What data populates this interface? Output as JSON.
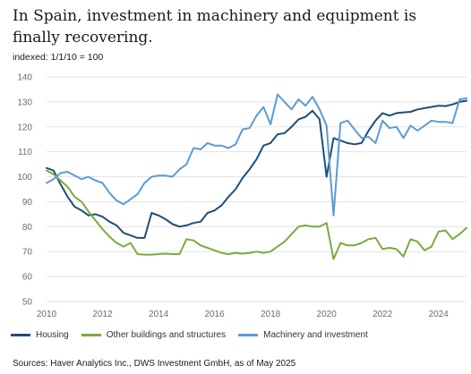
{
  "chart_data": {
    "type": "line",
    "title": "In Spain, investment in machinery and equipment is finally recovering.",
    "subtitle": "indexed: 1/1/10 = 100",
    "source": "Sources: Haver Analytics Inc., DWS Investment GmbH, as of May 2025",
    "xlim": [
      2010,
      2025
    ],
    "ylim": [
      50,
      140
    ],
    "xticks": [
      2010,
      2012,
      2014,
      2016,
      2018,
      2020,
      2022,
      2024
    ],
    "yticks": [
      50,
      60,
      70,
      80,
      90,
      100,
      110,
      120,
      130,
      140
    ],
    "grid": true,
    "legend_position": "bottom",
    "series": [
      {
        "name": "Housing",
        "color": "#1f4e79",
        "points": [
          [
            2010.0,
            103.5
          ],
          [
            2010.25,
            102.5
          ],
          [
            2010.5,
            97
          ],
          [
            2010.75,
            92
          ],
          [
            2011.0,
            88
          ],
          [
            2011.25,
            86.5
          ],
          [
            2011.5,
            84.5
          ],
          [
            2011.75,
            85
          ],
          [
            2012.0,
            84
          ],
          [
            2012.25,
            82
          ],
          [
            2012.5,
            80.5
          ],
          [
            2012.75,
            77.5
          ],
          [
            2013.0,
            76.5
          ],
          [
            2013.25,
            75.5
          ],
          [
            2013.5,
            75.5
          ],
          [
            2013.75,
            85.5
          ],
          [
            2014.0,
            84.5
          ],
          [
            2014.25,
            83
          ],
          [
            2014.5,
            81
          ],
          [
            2014.75,
            80
          ],
          [
            2015.0,
            80.5
          ],
          [
            2015.25,
            81.5
          ],
          [
            2015.5,
            82
          ],
          [
            2015.75,
            85.5
          ],
          [
            2016.0,
            86.5
          ],
          [
            2016.25,
            88.5
          ],
          [
            2016.5,
            92
          ],
          [
            2016.75,
            95
          ],
          [
            2017.0,
            99.5
          ],
          [
            2017.25,
            103
          ],
          [
            2017.5,
            107
          ],
          [
            2017.75,
            112.5
          ],
          [
            2018.0,
            113.5
          ],
          [
            2018.25,
            117
          ],
          [
            2018.5,
            117.5
          ],
          [
            2018.75,
            120
          ],
          [
            2019.0,
            123
          ],
          [
            2019.25,
            124
          ],
          [
            2019.5,
            126.5
          ],
          [
            2019.75,
            123
          ],
          [
            2020.0,
            100
          ],
          [
            2020.25,
            115.5
          ],
          [
            2020.5,
            114.5
          ],
          [
            2020.75,
            113.5
          ],
          [
            2021.0,
            113
          ],
          [
            2021.25,
            113.5
          ],
          [
            2021.5,
            118.5
          ],
          [
            2021.75,
            122.5
          ],
          [
            2022.0,
            125.5
          ],
          [
            2022.25,
            124.5
          ],
          [
            2022.5,
            125.5
          ],
          [
            2022.75,
            125.8
          ],
          [
            2023.0,
            126
          ],
          [
            2023.25,
            127
          ],
          [
            2023.5,
            127.5
          ],
          [
            2023.75,
            128
          ],
          [
            2024.0,
            128.5
          ],
          [
            2024.25,
            128.3
          ],
          [
            2024.5,
            129
          ],
          [
            2024.75,
            130
          ],
          [
            2025.0,
            130.5
          ]
        ]
      },
      {
        "name": "Other buildings and structures",
        "color": "#7aab3b",
        "points": [
          [
            2010.0,
            102.5
          ],
          [
            2010.25,
            101
          ],
          [
            2010.5,
            98.5
          ],
          [
            2010.75,
            96
          ],
          [
            2011.0,
            92
          ],
          [
            2011.25,
            90
          ],
          [
            2011.5,
            86
          ],
          [
            2011.75,
            82.5
          ],
          [
            2012.0,
            79
          ],
          [
            2012.25,
            76
          ],
          [
            2012.5,
            73.5
          ],
          [
            2012.75,
            72
          ],
          [
            2013.0,
            73.5
          ],
          [
            2013.25,
            69
          ],
          [
            2013.5,
            68.8
          ],
          [
            2013.75,
            68.8
          ],
          [
            2014.0,
            69
          ],
          [
            2014.25,
            69.2
          ],
          [
            2014.5,
            69
          ],
          [
            2014.75,
            69
          ],
          [
            2015.0,
            75
          ],
          [
            2015.25,
            74.5
          ],
          [
            2015.5,
            72.5
          ],
          [
            2015.75,
            71.5
          ],
          [
            2016.0,
            70.5
          ],
          [
            2016.25,
            69.5
          ],
          [
            2016.5,
            69
          ],
          [
            2016.75,
            69.5
          ],
          [
            2017.0,
            69.2
          ],
          [
            2017.25,
            69.5
          ],
          [
            2017.5,
            70
          ],
          [
            2017.75,
            69.5
          ],
          [
            2018.0,
            70
          ],
          [
            2018.25,
            72
          ],
          [
            2018.5,
            74
          ],
          [
            2018.75,
            77
          ],
          [
            2019.0,
            80
          ],
          [
            2019.25,
            80.5
          ],
          [
            2019.5,
            80
          ],
          [
            2019.75,
            80
          ],
          [
            2020.0,
            81.5
          ],
          [
            2020.25,
            67
          ],
          [
            2020.5,
            73.5
          ],
          [
            2020.75,
            72.5
          ],
          [
            2021.0,
            72.5
          ],
          [
            2021.25,
            73.5
          ],
          [
            2021.5,
            75
          ],
          [
            2021.75,
            75.5
          ],
          [
            2022.0,
            71
          ],
          [
            2022.25,
            71.5
          ],
          [
            2022.5,
            71
          ],
          [
            2022.75,
            68
          ],
          [
            2023.0,
            75
          ],
          [
            2023.25,
            74
          ],
          [
            2023.5,
            70.5
          ],
          [
            2023.75,
            72
          ],
          [
            2024.0,
            78
          ],
          [
            2024.25,
            78.5
          ],
          [
            2024.5,
            75
          ],
          [
            2024.75,
            77
          ],
          [
            2025.0,
            79.5
          ]
        ]
      },
      {
        "name": "Machinery and investment",
        "color": "#5b9bd5",
        "points": [
          [
            2010.0,
            97.5
          ],
          [
            2010.25,
            99
          ],
          [
            2010.5,
            101.5
          ],
          [
            2010.75,
            102
          ],
          [
            2011.0,
            100.5
          ],
          [
            2011.25,
            99
          ],
          [
            2011.5,
            100
          ],
          [
            2011.75,
            98.5
          ],
          [
            2012.0,
            97.5
          ],
          [
            2012.25,
            93.5
          ],
          [
            2012.5,
            90.5
          ],
          [
            2012.75,
            89
          ],
          [
            2013.0,
            91
          ],
          [
            2013.25,
            93
          ],
          [
            2013.5,
            97.5
          ],
          [
            2013.75,
            100
          ],
          [
            2014.0,
            100.5
          ],
          [
            2014.25,
            100.5
          ],
          [
            2014.5,
            100
          ],
          [
            2014.75,
            103
          ],
          [
            2015.0,
            105
          ],
          [
            2015.25,
            111.5
          ],
          [
            2015.5,
            111
          ],
          [
            2015.75,
            113.5
          ],
          [
            2016.0,
            112.5
          ],
          [
            2016.25,
            112.5
          ],
          [
            2016.5,
            111.5
          ],
          [
            2016.75,
            113
          ],
          [
            2017.0,
            119
          ],
          [
            2017.25,
            119.5
          ],
          [
            2017.5,
            124.5
          ],
          [
            2017.75,
            128
          ],
          [
            2018.0,
            121
          ],
          [
            2018.25,
            133
          ],
          [
            2018.5,
            130
          ],
          [
            2018.75,
            127
          ],
          [
            2019.0,
            131
          ],
          [
            2019.25,
            128.5
          ],
          [
            2019.5,
            132
          ],
          [
            2019.75,
            127
          ],
          [
            2020.0,
            120.5
          ],
          [
            2020.25,
            84.5
          ],
          [
            2020.5,
            121.5
          ],
          [
            2020.75,
            122.5
          ],
          [
            2021.0,
            119
          ],
          [
            2021.25,
            115.5
          ],
          [
            2021.5,
            116
          ],
          [
            2021.75,
            113.5
          ],
          [
            2022.0,
            122.5
          ],
          [
            2022.25,
            119.5
          ],
          [
            2022.5,
            120
          ],
          [
            2022.75,
            115.5
          ],
          [
            2023.0,
            120.5
          ],
          [
            2023.25,
            118.5
          ],
          [
            2023.5,
            120.5
          ],
          [
            2023.75,
            122.5
          ],
          [
            2024.0,
            122
          ],
          [
            2024.25,
            122
          ],
          [
            2024.5,
            121.5
          ],
          [
            2024.75,
            131
          ],
          [
            2025.0,
            131.5
          ]
        ]
      }
    ]
  }
}
